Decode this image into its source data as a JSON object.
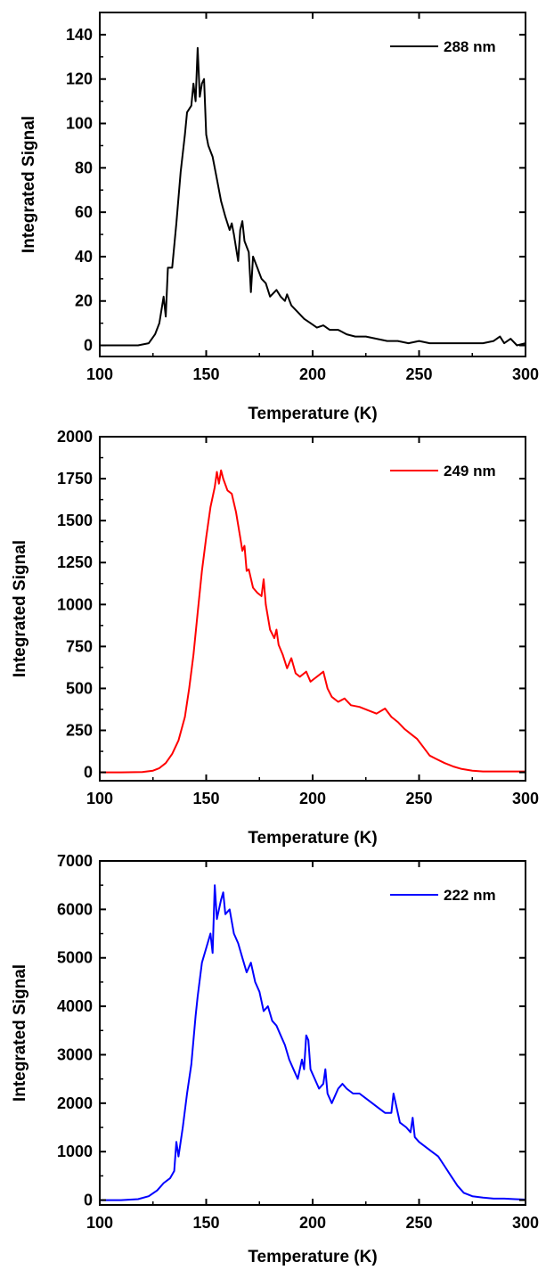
{
  "chart_data": [
    {
      "type": "line",
      "xlabel": "Temperature (K)",
      "ylabel": "Integrated Signal",
      "xlim": [
        100,
        300
      ],
      "ylim": [
        -5,
        150
      ],
      "xticks": [
        100,
        150,
        200,
        250,
        300
      ],
      "yticks": [
        0,
        20,
        40,
        60,
        80,
        100,
        120,
        140
      ],
      "legend_position": "top-right",
      "series": [
        {
          "name": "288 nm",
          "color": "#000000",
          "points": [
            [
              100,
              0
            ],
            [
              110,
              0
            ],
            [
              118,
              0
            ],
            [
              123,
              1
            ],
            [
              126,
              5
            ],
            [
              128,
              10
            ],
            [
              130,
              22
            ],
            [
              131,
              13
            ],
            [
              132,
              35
            ],
            [
              134,
              35
            ],
            [
              136,
              55
            ],
            [
              138,
              78
            ],
            [
              140,
              95
            ],
            [
              141,
              105
            ],
            [
              143,
              108
            ],
            [
              144,
              118
            ],
            [
              145,
              110
            ],
            [
              146,
              134
            ],
            [
              147,
              112
            ],
            [
              148,
              118
            ],
            [
              149,
              120
            ],
            [
              150,
              95
            ],
            [
              151,
              90
            ],
            [
              153,
              85
            ],
            [
              155,
              75
            ],
            [
              157,
              65
            ],
            [
              159,
              58
            ],
            [
              161,
              52
            ],
            [
              162,
              55
            ],
            [
              163,
              50
            ],
            [
              164,
              44
            ],
            [
              165,
              38
            ],
            [
              166,
              52
            ],
            [
              167,
              56
            ],
            [
              168,
              47
            ],
            [
              170,
              42
            ],
            [
              171,
              24
            ],
            [
              172,
              40
            ],
            [
              174,
              35
            ],
            [
              176,
              30
            ],
            [
              178,
              28
            ],
            [
              180,
              22
            ],
            [
              183,
              25
            ],
            [
              185,
              22
            ],
            [
              187,
              20
            ],
            [
              188,
              23
            ],
            [
              190,
              18
            ],
            [
              193,
              15
            ],
            [
              196,
              12
            ],
            [
              199,
              10
            ],
            [
              202,
              8
            ],
            [
              205,
              9
            ],
            [
              208,
              7
            ],
            [
              212,
              7
            ],
            [
              216,
              5
            ],
            [
              220,
              4
            ],
            [
              225,
              4
            ],
            [
              230,
              3
            ],
            [
              235,
              2
            ],
            [
              240,
              2
            ],
            [
              245,
              1
            ],
            [
              250,
              2
            ],
            [
              255,
              1
            ],
            [
              260,
              1
            ],
            [
              265,
              1
            ],
            [
              270,
              1
            ],
            [
              275,
              1
            ],
            [
              280,
              1
            ],
            [
              285,
              2
            ],
            [
              288,
              4
            ],
            [
              290,
              1
            ],
            [
              293,
              3
            ],
            [
              296,
              0
            ],
            [
              300,
              1
            ]
          ]
        }
      ]
    },
    {
      "type": "line",
      "xlabel": "Temperature (K)",
      "ylabel": "Integrated Signal",
      "xlim": [
        100,
        300
      ],
      "ylim": [
        -50,
        2000
      ],
      "xticks": [
        100,
        150,
        200,
        250,
        300
      ],
      "yticks": [
        0,
        250,
        500,
        750,
        1000,
        1250,
        1500,
        1750,
        2000
      ],
      "legend_position": "top-right",
      "series": [
        {
          "name": "249 nm",
          "color": "#ff0000",
          "points": [
            [
              100,
              0
            ],
            [
              110,
              0
            ],
            [
              120,
              2
            ],
            [
              125,
              10
            ],
            [
              128,
              25
            ],
            [
              131,
              55
            ],
            [
              134,
              110
            ],
            [
              137,
              190
            ],
            [
              140,
              330
            ],
            [
              142,
              500
            ],
            [
              144,
              700
            ],
            [
              146,
              950
            ],
            [
              148,
              1200
            ],
            [
              150,
              1400
            ],
            [
              152,
              1580
            ],
            [
              154,
              1700
            ],
            [
              155,
              1790
            ],
            [
              156,
              1720
            ],
            [
              157,
              1800
            ],
            [
              158,
              1750
            ],
            [
              160,
              1680
            ],
            [
              162,
              1660
            ],
            [
              164,
              1550
            ],
            [
              166,
              1400
            ],
            [
              167,
              1320
            ],
            [
              168,
              1350
            ],
            [
              169,
              1200
            ],
            [
              170,
              1210
            ],
            [
              172,
              1100
            ],
            [
              174,
              1070
            ],
            [
              176,
              1050
            ],
            [
              177,
              1150
            ],
            [
              178,
              1000
            ],
            [
              180,
              850
            ],
            [
              182,
              800
            ],
            [
              183,
              850
            ],
            [
              184,
              760
            ],
            [
              186,
              700
            ],
            [
              188,
              620
            ],
            [
              190,
              680
            ],
            [
              192,
              590
            ],
            [
              194,
              570
            ],
            [
              197,
              600
            ],
            [
              199,
              540
            ],
            [
              201,
              560
            ],
            [
              203,
              580
            ],
            [
              205,
              600
            ],
            [
              207,
              500
            ],
            [
              209,
              450
            ],
            [
              212,
              420
            ],
            [
              215,
              440
            ],
            [
              218,
              400
            ],
            [
              222,
              390
            ],
            [
              226,
              370
            ],
            [
              230,
              350
            ],
            [
              234,
              380
            ],
            [
              237,
              330
            ],
            [
              240,
              300
            ],
            [
              243,
              260
            ],
            [
              246,
              230
            ],
            [
              249,
              200
            ],
            [
              252,
              150
            ],
            [
              255,
              100
            ],
            [
              258,
              80
            ],
            [
              262,
              55
            ],
            [
              266,
              35
            ],
            [
              270,
              20
            ],
            [
              275,
              10
            ],
            [
              280,
              5
            ],
            [
              290,
              5
            ],
            [
              300,
              5
            ]
          ]
        }
      ]
    },
    {
      "type": "line",
      "xlabel": "Temperature (K)",
      "ylabel": "Integrated Signal",
      "xlim": [
        100,
        300
      ],
      "ylim": [
        -100,
        7000
      ],
      "xticks": [
        100,
        150,
        200,
        250,
        300
      ],
      "yticks": [
        0,
        1000,
        2000,
        3000,
        4000,
        5000,
        6000,
        7000
      ],
      "legend_position": "top-right",
      "series": [
        {
          "name": "222 nm",
          "color": "#0000ff",
          "points": [
            [
              100,
              0
            ],
            [
              110,
              0
            ],
            [
              118,
              20
            ],
            [
              123,
              80
            ],
            [
              127,
              200
            ],
            [
              130,
              350
            ],
            [
              133,
              450
            ],
            [
              135,
              600
            ],
            [
              136,
              1200
            ],
            [
              137,
              900
            ],
            [
              139,
              1500
            ],
            [
              141,
              2200
            ],
            [
              143,
              2800
            ],
            [
              145,
              3800
            ],
            [
              146,
              4200
            ],
            [
              148,
              4900
            ],
            [
              150,
              5200
            ],
            [
              152,
              5500
            ],
            [
              153,
              5100
            ],
            [
              154,
              6500
            ],
            [
              155,
              5800
            ],
            [
              157,
              6200
            ],
            [
              158,
              6350
            ],
            [
              159,
              5900
            ],
            [
              161,
              6000
            ],
            [
              163,
              5500
            ],
            [
              165,
              5300
            ],
            [
              167,
              5000
            ],
            [
              169,
              4700
            ],
            [
              171,
              4900
            ],
            [
              173,
              4500
            ],
            [
              175,
              4300
            ],
            [
              177,
              3900
            ],
            [
              179,
              4000
            ],
            [
              181,
              3700
            ],
            [
              183,
              3600
            ],
            [
              185,
              3400
            ],
            [
              187,
              3200
            ],
            [
              189,
              2900
            ],
            [
              191,
              2700
            ],
            [
              193,
              2500
            ],
            [
              195,
              2900
            ],
            [
              196,
              2700
            ],
            [
              197,
              3400
            ],
            [
              198,
              3300
            ],
            [
              199,
              2700
            ],
            [
              201,
              2500
            ],
            [
              203,
              2300
            ],
            [
              205,
              2400
            ],
            [
              206,
              2700
            ],
            [
              207,
              2200
            ],
            [
              209,
              2000
            ],
            [
              212,
              2300
            ],
            [
              214,
              2400
            ],
            [
              216,
              2300
            ],
            [
              219,
              2200
            ],
            [
              222,
              2200
            ],
            [
              225,
              2100
            ],
            [
              228,
              2000
            ],
            [
              231,
              1900
            ],
            [
              234,
              1800
            ],
            [
              237,
              1800
            ],
            [
              238,
              2200
            ],
            [
              239,
              2000
            ],
            [
              241,
              1600
            ],
            [
              244,
              1500
            ],
            [
              246,
              1400
            ],
            [
              247,
              1700
            ],
            [
              248,
              1300
            ],
            [
              250,
              1200
            ],
            [
              253,
              1100
            ],
            [
              256,
              1000
            ],
            [
              259,
              900
            ],
            [
              262,
              700
            ],
            [
              265,
              500
            ],
            [
              268,
              300
            ],
            [
              271,
              150
            ],
            [
              275,
              80
            ],
            [
              280,
              50
            ],
            [
              285,
              30
            ],
            [
              290,
              30
            ],
            [
              295,
              20
            ],
            [
              300,
              10
            ]
          ]
        }
      ]
    }
  ]
}
